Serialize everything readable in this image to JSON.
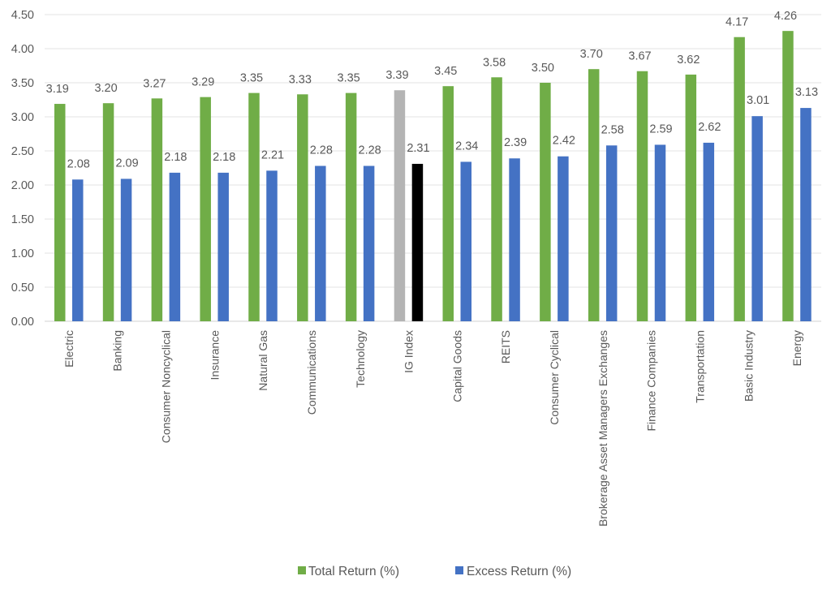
{
  "chart_data": {
    "type": "bar",
    "title": "",
    "xlabel": "",
    "ylabel": "",
    "ylim": [
      0,
      4.5
    ],
    "yticks": [
      "0.00",
      "0.50",
      "1.00",
      "1.50",
      "2.00",
      "2.50",
      "3.00",
      "3.50",
      "4.00",
      "4.50"
    ],
    "grid": true,
    "legend_position": "bottom",
    "categories": [
      "Electric",
      "Banking",
      "Consumer Noncyclical",
      "Insurance",
      "Natural Gas",
      "Communications",
      "Technology",
      "IG Index",
      "Capital Goods",
      "REITS",
      "Consumer Cyclical",
      "Brokerage Asset Managers Exchanges",
      "Finance Companies",
      "Transportation",
      "Basic Industry",
      "Energy"
    ],
    "series": [
      {
        "name": "Total Return (%)",
        "color": "#70AD47",
        "highlight": {
          "IG Index": "#B4B4B4"
        },
        "values": [
          3.19,
          3.2,
          3.27,
          3.29,
          3.35,
          3.33,
          3.35,
          3.39,
          3.45,
          3.58,
          3.5,
          3.7,
          3.67,
          3.62,
          4.17,
          4.26
        ],
        "labels": [
          "3.19",
          "3.20",
          "3.27",
          "3.29",
          "3.35",
          "3.33",
          "3.35",
          "3.39",
          "3.45",
          "3.58",
          "3.50",
          "3.70",
          "3.67",
          "3.62",
          "4.17",
          "4.26"
        ]
      },
      {
        "name": "Excess Return (%)",
        "color": "#4472C4",
        "highlight": {
          "IG Index": "#000000"
        },
        "values": [
          2.08,
          2.09,
          2.18,
          2.18,
          2.21,
          2.28,
          2.28,
          2.31,
          2.34,
          2.39,
          2.42,
          2.58,
          2.59,
          2.62,
          3.01,
          3.13
        ],
        "labels": [
          "2.08",
          "2.09",
          "2.18",
          "2.18",
          "2.21",
          "2.28",
          "2.28",
          "2.31",
          "2.34",
          "2.39",
          "2.42",
          "2.58",
          "2.59",
          "2.62",
          "3.01",
          "3.13"
        ]
      }
    ]
  }
}
